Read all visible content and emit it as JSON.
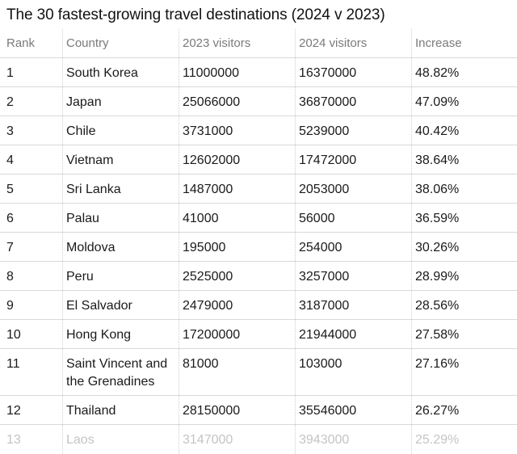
{
  "title": "The 30 fastest-growing travel destinations (2024 v 2023)",
  "columns": {
    "rank": "Rank",
    "country": "Country",
    "visitors_2023": "2023 visitors",
    "visitors_2024": "2024 visitors",
    "increase": "Increase"
  },
  "rows": [
    {
      "rank": "1",
      "country": "South Korea",
      "visitors_2023": "11000000",
      "visitors_2024": "16370000",
      "increase": "48.82%"
    },
    {
      "rank": "2",
      "country": "Japan",
      "visitors_2023": "25066000",
      "visitors_2024": "36870000",
      "increase": "47.09%"
    },
    {
      "rank": "3",
      "country": "Chile",
      "visitors_2023": "3731000",
      "visitors_2024": "5239000",
      "increase": "40.42%"
    },
    {
      "rank": "4",
      "country": "Vietnam",
      "visitors_2023": "12602000",
      "visitors_2024": "17472000",
      "increase": "38.64%"
    },
    {
      "rank": "5",
      "country": "Sri Lanka",
      "visitors_2023": "1487000",
      "visitors_2024": "2053000",
      "increase": "38.06%"
    },
    {
      "rank": "6",
      "country": "Palau",
      "visitors_2023": "41000",
      "visitors_2024": "56000",
      "increase": "36.59%"
    },
    {
      "rank": "7",
      "country": "Moldova",
      "visitors_2023": "195000",
      "visitors_2024": "254000",
      "increase": "30.26%"
    },
    {
      "rank": "8",
      "country": "Peru",
      "visitors_2023": "2525000",
      "visitors_2024": "3257000",
      "increase": "28.99%"
    },
    {
      "rank": "9",
      "country": "El Salvador",
      "visitors_2023": "2479000",
      "visitors_2024": "3187000",
      "increase": "28.56%"
    },
    {
      "rank": "10",
      "country": "Hong Kong",
      "visitors_2023": "17200000",
      "visitors_2024": "21944000",
      "increase": "27.58%"
    },
    {
      "rank": "11",
      "country": "Saint Vincent and the Grenadines",
      "visitors_2023": "81000",
      "visitors_2024": "103000",
      "increase": "27.16%"
    },
    {
      "rank": "12",
      "country": "Thailand",
      "visitors_2023": "28150000",
      "visitors_2024": "35546000",
      "increase": "26.27%"
    },
    {
      "rank": "13",
      "country": "Laos",
      "visitors_2023": "3147000",
      "visitors_2024": "3943000",
      "increase": "25.29%"
    }
  ]
}
